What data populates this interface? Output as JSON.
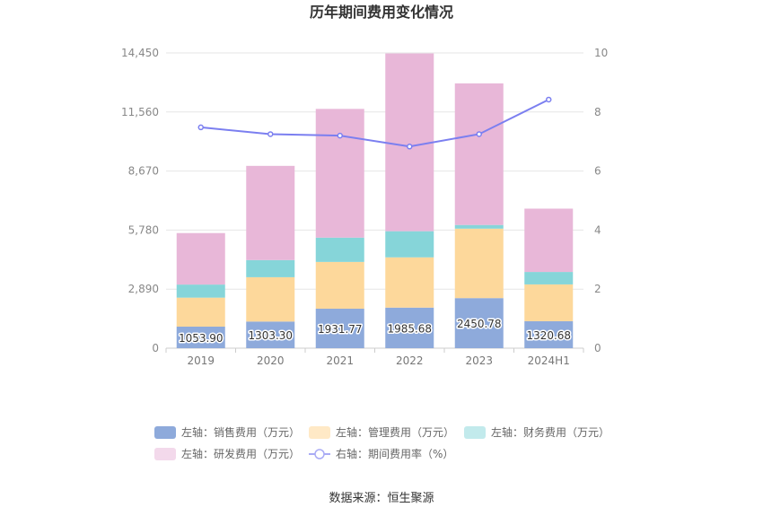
{
  "chart_data": {
    "type": "bar",
    "title": "历年期间费用变化情况",
    "categories": [
      "2019",
      "2020",
      "2021",
      "2022",
      "2023",
      "2024H1"
    ],
    "left_axis": {
      "ticks": [
        "0",
        "2,890",
        "5,780",
        "8,670",
        "11,560",
        "14,450"
      ],
      "range": [
        0,
        14450
      ]
    },
    "right_axis": {
      "ticks": [
        "0",
        "2",
        "4",
        "6",
        "8",
        "10"
      ],
      "range": [
        0,
        10
      ]
    },
    "series": [
      {
        "name": "左轴：销售费用（万元）",
        "kind": "bar",
        "axis": "left",
        "color": "#8eaadb",
        "values": [
          1053.9,
          1303.3,
          1931.77,
          1985.68,
          2450.78,
          1320.68
        ],
        "labels": [
          "1053.90",
          "1303.30",
          "1931.77",
          "1985.68",
          "2450.78",
          "1320.68"
        ]
      },
      {
        "name": "左轴：管理费用（万元）",
        "kind": "bar",
        "axis": "left",
        "color": "#fdd89b",
        "values": [
          1420,
          2170,
          2290,
          2460,
          3400,
          1800
        ]
      },
      {
        "name": "左轴：财务费用（万元）",
        "kind": "bar",
        "axis": "left",
        "color": "#86d5d9",
        "values": [
          640,
          840,
          1190,
          1280,
          180,
          610
        ]
      },
      {
        "name": "左轴：研发费用（万元）",
        "kind": "bar",
        "axis": "left",
        "color": "#e8b7d8",
        "values": [
          2520,
          4610,
          6300,
          8700,
          6930,
          3100
        ]
      },
      {
        "name": "右轴：期间费用率（%）",
        "kind": "line",
        "axis": "right",
        "color": "#7b7ff0",
        "values": [
          7.48,
          7.25,
          7.2,
          6.83,
          7.25,
          8.42
        ]
      }
    ],
    "legend_position": "bottom",
    "grid": true
  },
  "source": "数据来源：恒生聚源"
}
